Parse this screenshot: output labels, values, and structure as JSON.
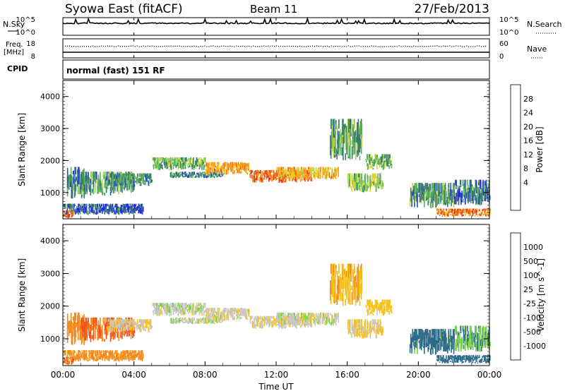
{
  "header": {
    "title": "Syowa East (fitACF)",
    "beam": "Beam 11",
    "date": "27/Feb/2013"
  },
  "top_panels": {
    "nsky_label": "N.Sky",
    "nsearch_label": "N.Search",
    "freq_label_1": "Freq.",
    "freq_label_2": "[MHz]",
    "nave_label": "Nave",
    "cpid_label": "CPID",
    "cpid_value": "normal (fast) 151 RF",
    "noise_tick_high": "10^5",
    "noise_tick_low": "10^0",
    "freq_tick_high": "18",
    "freq_tick_low": "8",
    "nave_tick_high": "60",
    "nave_tick_low": "0"
  },
  "axes": {
    "ylabel": "Slant Range [km]",
    "xlabel": "Time UT",
    "y_ticks": [
      "1000",
      "2000",
      "3000",
      "4000"
    ],
    "x_ticks": [
      "00:00",
      "04:00",
      "08:00",
      "12:00",
      "16:00",
      "20:00",
      "00:00"
    ]
  },
  "power_scale": {
    "label": "Power [dB]",
    "ticks": [
      "4",
      "8",
      "12",
      "16",
      "20",
      "24",
      "28"
    ],
    "colors": [
      "#1a1aff",
      "#2a4fb0",
      "#3b7f6a",
      "#5db55d",
      "#b8d84a",
      "#f5d025",
      "#f7a21c",
      "#f26a14",
      "#e62a10"
    ]
  },
  "velocity_scale": {
    "label": "Velocity [m s^-1]",
    "ticks": [
      "1000",
      "500",
      "100",
      "25",
      "-25",
      "-100",
      "-500",
      "-1000"
    ],
    "colors": [
      "#2244aa",
      "#2f6c8c",
      "#3a8f55",
      "#7cd045",
      "#c8c8c8",
      "#f5c21c",
      "#f58a1c",
      "#f0521a",
      "#e81a10"
    ]
  },
  "chart_data": {
    "type": "heatmap",
    "title": "Syowa East (fitACF)",
    "x_range_hours": [
      0,
      24
    ],
    "y_range_km": [
      180,
      4500
    ],
    "y_ticks_km": [
      1000,
      2000,
      3000,
      4000
    ],
    "power_range_db": [
      0,
      30
    ],
    "velocity_range_ms": [
      -1000,
      1000
    ],
    "scatter_bands": [
      {
        "t0": 0.0,
        "t1": 0.6,
        "r0": 200,
        "r1": 450,
        "power": 26,
        "velocity": -600
      },
      {
        "t0": 0.0,
        "t1": 4.5,
        "r0": 300,
        "r1": 650,
        "power": 6,
        "velocity": -150
      },
      {
        "t0": 0.2,
        "t1": 1.2,
        "r0": 800,
        "r1": 1800,
        "power": 8,
        "velocity": -300
      },
      {
        "t0": 1.0,
        "t1": 4.0,
        "r0": 900,
        "r1": 1650,
        "power": 10,
        "velocity": -550
      },
      {
        "t0": 2.5,
        "t1": 5.0,
        "r0": 1200,
        "r1": 1600,
        "power": 9,
        "velocity": -20
      },
      {
        "t0": 5.0,
        "t1": 8.0,
        "r0": 1700,
        "r1": 2100,
        "power": 12,
        "velocity": 10
      },
      {
        "t0": 6.0,
        "t1": 9.0,
        "r0": 1450,
        "r1": 1650,
        "power": 8,
        "velocity": 5
      },
      {
        "t0": 8.0,
        "t1": 10.5,
        "r0": 1550,
        "r1": 1950,
        "power": 22,
        "velocity": -10
      },
      {
        "t0": 10.5,
        "t1": 14.0,
        "r0": 1300,
        "r1": 1700,
        "power": 25,
        "velocity": -15
      },
      {
        "t0": 12.0,
        "t1": 15.5,
        "r0": 1400,
        "r1": 1800,
        "power": 20,
        "velocity": 0
      },
      {
        "t0": 15.0,
        "t1": 16.8,
        "r0": 2000,
        "r1": 3300,
        "power": 11,
        "velocity": -80
      },
      {
        "t0": 16.0,
        "t1": 18.0,
        "r0": 1000,
        "r1": 1600,
        "power": 14,
        "velocity": -30
      },
      {
        "t0": 17.0,
        "t1": 18.5,
        "r0": 1700,
        "r1": 2200,
        "power": 12,
        "velocity": -60
      },
      {
        "t0": 19.5,
        "t1": 22.0,
        "r0": 500,
        "r1": 1300,
        "power": 9,
        "velocity": 150
      },
      {
        "t0": 21.0,
        "t1": 24.0,
        "r0": 250,
        "r1": 500,
        "power": 24,
        "velocity": 250
      },
      {
        "t0": 22.0,
        "t1": 24.0,
        "r0": 600,
        "r1": 1400,
        "power": 7,
        "velocity": 80
      }
    ]
  }
}
